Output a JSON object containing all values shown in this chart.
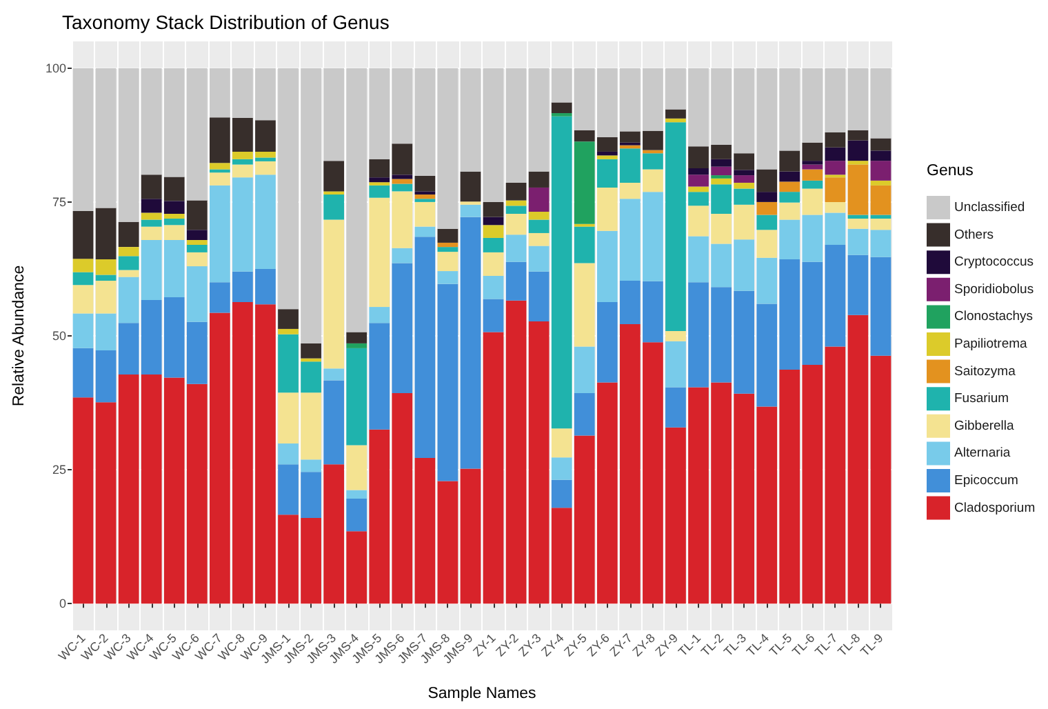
{
  "chart_data": {
    "type": "bar",
    "title": "Taxonomy Stack Distribution of Genus",
    "xlabel": "Sample Names",
    "ylabel": "Relative Abundance",
    "legend_title": "Genus",
    "stacked": true,
    "grid": true,
    "legend": "right",
    "categories": [
      "WC-1",
      "WC-2",
      "WC-3",
      "WC-4",
      "WC-5",
      "WC-6",
      "WC-7",
      "WC-8",
      "WC-9",
      "JMS-1",
      "JMS-2",
      "JMS-3",
      "JMS-4",
      "JMS-5",
      "JMS-6",
      "JMS-7",
      "JMS-8",
      "JMS-9",
      "ZY-1",
      "ZY-2",
      "ZY-3",
      "ZY-4",
      "ZY-5",
      "ZY-6",
      "ZY-7",
      "ZY-8",
      "ZY-9",
      "TL-1",
      "TL-2",
      "TL-3",
      "TL-4",
      "TL-5",
      "TL-6",
      "TL-7",
      "TL-8",
      "TL-9"
    ],
    "ylim": [
      -5,
      105
    ],
    "yticks": [
      0,
      25,
      50,
      75,
      100
    ],
    "series": [
      {
        "name": "Cladosporium",
        "color": "#d8232a",
        "values": [
          38.5,
          37.6,
          42.8,
          42.8,
          42.2,
          41.0,
          54.3,
          56.3,
          55.9,
          16.6,
          16.0,
          26.0,
          13.5,
          32.5,
          39.3,
          27.2,
          22.9,
          25.2,
          50.7,
          56.6,
          52.7,
          17.9,
          31.4,
          41.3,
          52.2,
          48.8,
          32.9,
          40.4,
          41.3,
          39.2,
          36.8,
          43.7,
          44.6,
          48.0,
          53.9,
          46.3
        ]
      },
      {
        "name": "Epicoccum",
        "color": "#418fd9",
        "values": [
          9.2,
          9.7,
          9.6,
          13.9,
          15.0,
          11.6,
          5.7,
          5.7,
          6.6,
          9.4,
          8.6,
          15.7,
          6.1,
          19.9,
          24.3,
          41.3,
          36.8,
          47.0,
          6.2,
          7.2,
          9.3,
          5.2,
          7.9,
          15.0,
          8.1,
          11.4,
          7.5,
          19.6,
          17.8,
          19.2,
          19.2,
          20.6,
          19.2,
          19.0,
          11.2,
          18.4
        ]
      },
      {
        "name": "Alternaria",
        "color": "#78cbea",
        "values": [
          6.5,
          6.9,
          8.6,
          11.2,
          10.7,
          10.4,
          18.1,
          17.6,
          17.6,
          3.9,
          2.3,
          2.2,
          1.6,
          3.0,
          2.8,
          1.9,
          2.4,
          2.3,
          4.3,
          5.1,
          4.8,
          4.2,
          8.7,
          13.3,
          15.3,
          16.7,
          8.6,
          8.6,
          8.1,
          9.6,
          8.6,
          7.4,
          8.8,
          6.0,
          4.9,
          5.1
        ]
      },
      {
        "name": "Gibberella",
        "color": "#f4e391",
        "values": [
          5.3,
          6.1,
          1.3,
          2.5,
          2.8,
          2.6,
          2.4,
          2.4,
          2.5,
          9.5,
          12.5,
          27.8,
          8.4,
          20.4,
          10.6,
          4.6,
          3.6,
          0.6,
          4.4,
          3.9,
          2.4,
          5.4,
          15.6,
          8.1,
          3.0,
          4.2,
          1.9,
          5.7,
          5.6,
          6.5,
          5.2,
          3.2,
          4.9,
          2.0,
          1.9,
          2.1
        ]
      },
      {
        "name": "Fusarium",
        "color": "#1fb3ad",
        "values": [
          2.4,
          1.1,
          2.6,
          1.3,
          1.2,
          1.4,
          0.6,
          1.0,
          0.7,
          10.9,
          5.8,
          4.7,
          18.1,
          2.3,
          1.4,
          0.6,
          0.9,
          0,
          2.7,
          1.5,
          2.5,
          58.3,
          6.8,
          5.3,
          6.4,
          3.0,
          39.0,
          2.6,
          5.5,
          3.0,
          2.8,
          2.0,
          1.5,
          0,
          0.7,
          0.7
        ]
      },
      {
        "name": "Saitozyma",
        "color": "#e3921f",
        "values": [
          0,
          0,
          0,
          0,
          0,
          0,
          0,
          0,
          0,
          0,
          0,
          0,
          0,
          0,
          0.9,
          0.8,
          0.8,
          0,
          0,
          0,
          0,
          0,
          0,
          0,
          0.6,
          0.6,
          0,
          0,
          0,
          0,
          2.4,
          1.9,
          2.1,
          4.6,
          9.4,
          5.5
        ]
      },
      {
        "name": "Papiliotrema",
        "color": "#dccb2a",
        "values": [
          2.5,
          2.9,
          1.7,
          1.3,
          0.9,
          0.9,
          1.2,
          1.4,
          1.1,
          1.0,
          0.6,
          0.6,
          0,
          0.6,
          0,
          0,
          0,
          0,
          2.4,
          1.0,
          1.5,
          0,
          0.5,
          0.7,
          0,
          0,
          0.7,
          1.0,
          1.1,
          1.1,
          0,
          0,
          0,
          0.5,
          0.7,
          0.9
        ]
      },
      {
        "name": "Clonostachys",
        "color": "#20a25f",
        "values": [
          0,
          0,
          0,
          0,
          0,
          0,
          0,
          0,
          0,
          0,
          0,
          0,
          0.9,
          0,
          0,
          0,
          0,
          0,
          0,
          0,
          0,
          0.6,
          15.4,
          0,
          0,
          0,
          0,
          0,
          0.6,
          0,
          0,
          0,
          0,
          0,
          0,
          0
        ]
      },
      {
        "name": "Sporidiobolus",
        "color": "#7b1f6f",
        "values": [
          0,
          0,
          0,
          0,
          0,
          0,
          0,
          0,
          0,
          0,
          0,
          0,
          0,
          0,
          0,
          0,
          0,
          0,
          0,
          0,
          4.5,
          0,
          0,
          0,
          0,
          0,
          0,
          2.2,
          1.6,
          1.4,
          0,
          0,
          0.9,
          2.6,
          0,
          3.7
        ]
      },
      {
        "name": "Cryptococcus",
        "color": "#1f0a3a",
        "values": [
          0,
          0,
          0,
          2.6,
          2.4,
          1.9,
          0,
          0,
          0,
          0,
          0,
          0,
          0,
          0.9,
          0.8,
          0.6,
          0,
          0,
          1.5,
          0,
          0,
          0,
          0,
          0.7,
          0.5,
          0,
          0,
          1.2,
          1.4,
          1.0,
          1.9,
          1.9,
          0.7,
          2.5,
          3.8,
          1.9
        ]
      },
      {
        "name": "Others",
        "color": "#372e2b",
        "values": [
          8.9,
          9.6,
          4.7,
          4.5,
          4.5,
          5.5,
          8.5,
          6.3,
          5.9,
          3.7,
          2.8,
          5.7,
          2.1,
          3.4,
          5.8,
          2.9,
          2.6,
          5.6,
          2.8,
          3.3,
          3.0,
          2.0,
          2.1,
          2.7,
          2.1,
          3.6,
          1.7,
          4.1,
          2.7,
          3.1,
          4.2,
          3.9,
          3.4,
          2.8,
          1.9,
          2.3
        ]
      },
      {
        "name": "Unclassified",
        "color": "#c9c9c9",
        "values": [
          26.7,
          26.1,
          28.7,
          19.9,
          20.3,
          24.7,
          9.2,
          9.3,
          9.7,
          45.0,
          51.4,
          17.3,
          49.3,
          17.0,
          14.1,
          20.1,
          30.0,
          19.3,
          25.0,
          21.4,
          19.3,
          6.4,
          11.6,
          12.9,
          11.8,
          11.7,
          7.7,
          14.6,
          14.3,
          15.9,
          18.9,
          15.4,
          13.9,
          12.0,
          11.6,
          13.1
        ]
      }
    ]
  }
}
